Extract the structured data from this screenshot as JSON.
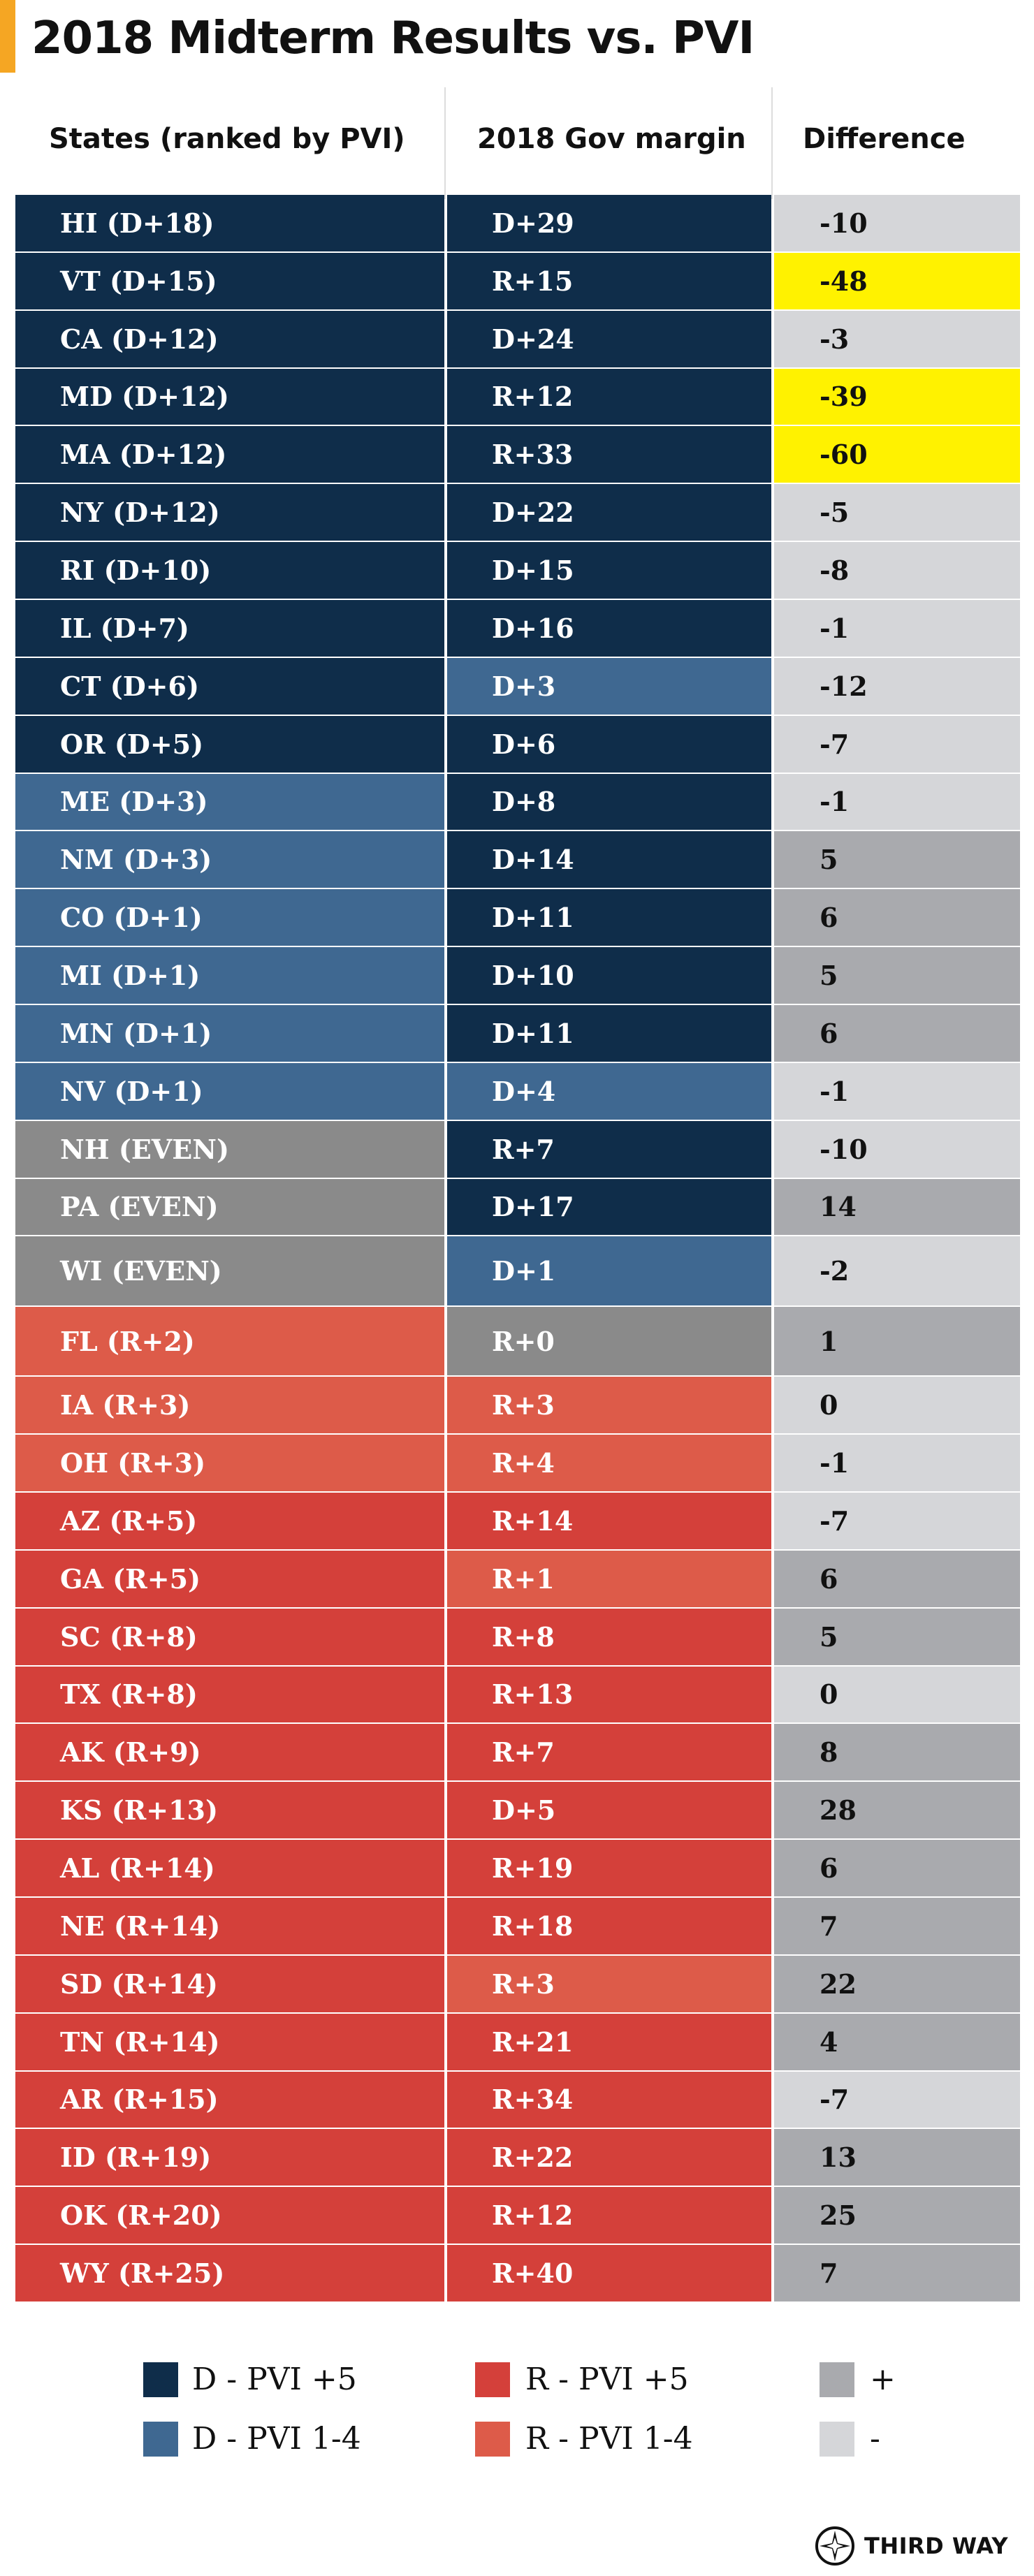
{
  "title": "2018 Midterm Results vs. PVI",
  "headers": {
    "state": "States (ranked by PVI)",
    "gov_margin": "2018 Gov margin",
    "difference": "Difference"
  },
  "colors": {
    "accent": "#f5a623",
    "d_pvi_5": "#0f2d4a",
    "d_pvi_1_4": "#3f6891",
    "even": "#8a8a8a",
    "r_pvi_5": "#d4403a",
    "r_pvi_1_4": "#dd5b49",
    "diff_plus": "#a9aaae",
    "diff_minus": "#d5d6d9",
    "highlight": "#fff200"
  },
  "chart_data": {
    "type": "table",
    "columns": [
      "States (ranked by PVI)",
      "2018 Gov margin",
      "Difference"
    ],
    "rows": [
      {
        "state": "HI (D+18)",
        "state_cat": "d_pvi_5",
        "gov": "D+29",
        "gov_cat": "d_pvi_5",
        "diff": "-10",
        "diff_cat": "diff_minus"
      },
      {
        "state": "VT (D+15)",
        "state_cat": "d_pvi_5",
        "gov": "R+15",
        "gov_cat": "d_pvi_5",
        "diff": "-48",
        "diff_cat": "highlight"
      },
      {
        "state": "CA (D+12)",
        "state_cat": "d_pvi_5",
        "gov": "D+24",
        "gov_cat": "d_pvi_5",
        "diff": "-3",
        "diff_cat": "diff_minus"
      },
      {
        "state": "MD (D+12)",
        "state_cat": "d_pvi_5",
        "gov": "R+12",
        "gov_cat": "d_pvi_5",
        "diff": "-39",
        "diff_cat": "highlight"
      },
      {
        "state": "MA (D+12)",
        "state_cat": "d_pvi_5",
        "gov": "R+33",
        "gov_cat": "d_pvi_5",
        "diff": "-60",
        "diff_cat": "highlight"
      },
      {
        "state": "NY (D+12)",
        "state_cat": "d_pvi_5",
        "gov": "D+22",
        "gov_cat": "d_pvi_5",
        "diff": "-5",
        "diff_cat": "diff_minus"
      },
      {
        "state": "RI (D+10)",
        "state_cat": "d_pvi_5",
        "gov": "D+15",
        "gov_cat": "d_pvi_5",
        "diff": "-8",
        "diff_cat": "diff_minus"
      },
      {
        "state": "IL (D+7)",
        "state_cat": "d_pvi_5",
        "gov": "D+16",
        "gov_cat": "d_pvi_5",
        "diff": "-1",
        "diff_cat": "diff_minus"
      },
      {
        "state": "CT (D+6)",
        "state_cat": "d_pvi_5",
        "gov": "D+3",
        "gov_cat": "d_pvi_1_4",
        "diff": "-12",
        "diff_cat": "diff_minus"
      },
      {
        "state": "OR (D+5)",
        "state_cat": "d_pvi_5",
        "gov": "D+6",
        "gov_cat": "d_pvi_5",
        "diff": "-7",
        "diff_cat": "diff_minus"
      },
      {
        "state": "ME (D+3)",
        "state_cat": "d_pvi_1_4",
        "gov": "D+8",
        "gov_cat": "d_pvi_5",
        "diff": "-1",
        "diff_cat": "diff_minus"
      },
      {
        "state": "NM (D+3)",
        "state_cat": "d_pvi_1_4",
        "gov": "D+14",
        "gov_cat": "d_pvi_5",
        "diff": "5",
        "diff_cat": "diff_plus"
      },
      {
        "state": "CO (D+1)",
        "state_cat": "d_pvi_1_4",
        "gov": "D+11",
        "gov_cat": "d_pvi_5",
        "diff": "6",
        "diff_cat": "diff_plus"
      },
      {
        "state": "MI (D+1)",
        "state_cat": "d_pvi_1_4",
        "gov": "D+10",
        "gov_cat": "d_pvi_5",
        "diff": "5",
        "diff_cat": "diff_plus"
      },
      {
        "state": "MN (D+1)",
        "state_cat": "d_pvi_1_4",
        "gov": "D+11",
        "gov_cat": "d_pvi_5",
        "diff": "6",
        "diff_cat": "diff_plus"
      },
      {
        "state": "NV (D+1)",
        "state_cat": "d_pvi_1_4",
        "gov": "D+4",
        "gov_cat": "d_pvi_1_4",
        "diff": "-1",
        "diff_cat": "diff_minus"
      },
      {
        "state": "NH (EVEN)",
        "state_cat": "even",
        "gov": "R+7",
        "gov_cat": "d_pvi_5",
        "diff": "-10",
        "diff_cat": "diff_minus"
      },
      {
        "state": "PA (EVEN)",
        "state_cat": "even",
        "gov": "D+17",
        "gov_cat": "d_pvi_5",
        "diff": "14",
        "diff_cat": "diff_plus"
      },
      {
        "state": "WI (EVEN)",
        "state_cat": "even",
        "gov": "D+1",
        "gov_cat": "d_pvi_1_4",
        "diff": "-2",
        "diff_cat": "diff_minus"
      },
      {
        "state": "FL (R+2)",
        "state_cat": "r_pvi_1_4",
        "gov": "R+0",
        "gov_cat": "even",
        "diff": "1",
        "diff_cat": "diff_plus"
      },
      {
        "state": "IA (R+3)",
        "state_cat": "r_pvi_1_4",
        "gov": "R+3",
        "gov_cat": "r_pvi_1_4",
        "diff": "0",
        "diff_cat": "diff_minus"
      },
      {
        "state": "OH (R+3)",
        "state_cat": "r_pvi_1_4",
        "gov": "R+4",
        "gov_cat": "r_pvi_1_4",
        "diff": "-1",
        "diff_cat": "diff_minus"
      },
      {
        "state": "AZ (R+5)",
        "state_cat": "r_pvi_5",
        "gov": "R+14",
        "gov_cat": "r_pvi_5",
        "diff": "-7",
        "diff_cat": "diff_minus"
      },
      {
        "state": "GA (R+5)",
        "state_cat": "r_pvi_5",
        "gov": "R+1",
        "gov_cat": "r_pvi_1_4",
        "diff": "6",
        "diff_cat": "diff_plus"
      },
      {
        "state": "SC (R+8)",
        "state_cat": "r_pvi_5",
        "gov": "R+8",
        "gov_cat": "r_pvi_5",
        "diff": "5",
        "diff_cat": "diff_plus"
      },
      {
        "state": "TX (R+8)",
        "state_cat": "r_pvi_5",
        "gov": "R+13",
        "gov_cat": "r_pvi_5",
        "diff": "0",
        "diff_cat": "diff_minus"
      },
      {
        "state": "AK (R+9)",
        "state_cat": "r_pvi_5",
        "gov": "R+7",
        "gov_cat": "r_pvi_5",
        "diff": "8",
        "diff_cat": "diff_plus"
      },
      {
        "state": "KS (R+13)",
        "state_cat": "r_pvi_5",
        "gov": "D+5",
        "gov_cat": "r_pvi_5",
        "diff": "28",
        "diff_cat": "diff_plus"
      },
      {
        "state": "AL (R+14)",
        "state_cat": "r_pvi_5",
        "gov": "R+19",
        "gov_cat": "r_pvi_5",
        "diff": "6",
        "diff_cat": "diff_plus"
      },
      {
        "state": "NE (R+14)",
        "state_cat": "r_pvi_5",
        "gov": "R+18",
        "gov_cat": "r_pvi_5",
        "diff": "7",
        "diff_cat": "diff_plus"
      },
      {
        "state": "SD (R+14)",
        "state_cat": "r_pvi_5",
        "gov": "R+3",
        "gov_cat": "r_pvi_1_4",
        "diff": "22",
        "diff_cat": "diff_plus"
      },
      {
        "state": "TN (R+14)",
        "state_cat": "r_pvi_5",
        "gov": "R+21",
        "gov_cat": "r_pvi_5",
        "diff": "4",
        "diff_cat": "diff_plus"
      },
      {
        "state": "AR (R+15)",
        "state_cat": "r_pvi_5",
        "gov": "R+34",
        "gov_cat": "r_pvi_5",
        "diff": "-7",
        "diff_cat": "diff_minus"
      },
      {
        "state": "ID (R+19)",
        "state_cat": "r_pvi_5",
        "gov": "R+22",
        "gov_cat": "r_pvi_5",
        "diff": "13",
        "diff_cat": "diff_plus"
      },
      {
        "state": "OK (R+20)",
        "state_cat": "r_pvi_5",
        "gov": "R+12",
        "gov_cat": "r_pvi_5",
        "diff": "25",
        "diff_cat": "diff_plus"
      },
      {
        "state": "WY (R+25)",
        "state_cat": "r_pvi_5",
        "gov": "R+40",
        "gov_cat": "r_pvi_5",
        "diff": "7",
        "diff_cat": "diff_plus"
      }
    ]
  },
  "legend": [
    {
      "label": "D - PVI +5",
      "cat": "d_pvi_5"
    },
    {
      "label": "D - PVI 1-4",
      "cat": "d_pvi_1_4"
    },
    {
      "label": "R - PVI +5",
      "cat": "r_pvi_5"
    },
    {
      "label": "R - PVI 1-4",
      "cat": "r_pvi_1_4"
    },
    {
      "label": "+",
      "cat": "diff_plus"
    },
    {
      "label": "-",
      "cat": "diff_minus"
    }
  ],
  "brand": {
    "name": "THIRD WAY",
    "icon": "compass-logo-icon"
  }
}
